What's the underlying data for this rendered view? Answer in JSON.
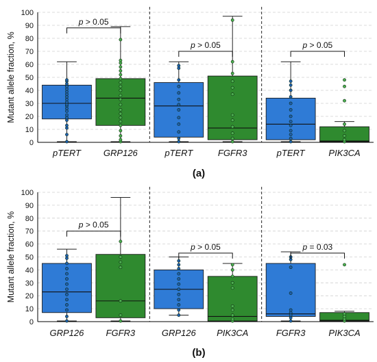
{
  "chart_data": [
    {
      "panel_label": "(a)",
      "type": "box",
      "ylabel": "Mutant allele fraction, %",
      "ylim": [
        0,
        100
      ],
      "yticks": [
        0,
        10,
        20,
        30,
        40,
        50,
        60,
        70,
        80,
        90,
        100
      ],
      "grid": "horizontal-dashed",
      "groups": [
        {
          "boxes": [
            {
              "label": "pTERT",
              "color": "#2f7bd6",
              "whisker_low": 0.5,
              "q1": 18,
              "median": 30,
              "q3": 44,
              "whisker_high": 62,
              "points": [
                0.5,
                6,
                11,
                13,
                17,
                19,
                21,
                24,
                26,
                28,
                29,
                31,
                33,
                35,
                37,
                39,
                41,
                43,
                45,
                47,
                48
              ]
            },
            {
              "label": "GRP126",
              "color": "#2f8a2f",
              "whisker_low": 0.5,
              "q1": 13,
              "median": 34,
              "q3": 49,
              "whisker_high": 89,
              "points": [
                0.5,
                2,
                5,
                9,
                13,
                16,
                19,
                22,
                25,
                29,
                33,
                36,
                40,
                43,
                46,
                49,
                52,
                55,
                58,
                61,
                63,
                79
              ]
            }
          ],
          "comparison": {
            "symbol": "p",
            "op": ">",
            "value": "0.05",
            "bracket_y": 88
          }
        },
        {
          "boxes": [
            {
              "label": "pTERT",
              "color": "#2f7bd6",
              "whisker_low": 0.5,
              "q1": 4,
              "median": 28,
              "q3": 46,
              "whisker_high": 62,
              "points": [
                0.5,
                3,
                8,
                14,
                19,
                25,
                29,
                33,
                38,
                43,
                48,
                57,
                59
              ]
            },
            {
              "label": "FGFR3",
              "color": "#2f8a2f",
              "whisker_low": 0.5,
              "q1": 2,
              "median": 11,
              "q3": 51,
              "whisker_high": 97,
              "points": [
                0.5,
                3,
                7,
                12,
                17,
                21,
                37,
                42,
                47,
                53,
                62,
                94
              ]
            }
          ],
          "comparison": {
            "symbol": "p",
            "op": ">",
            "value": "0.05",
            "bracket_y": 70
          }
        },
        {
          "boxes": [
            {
              "label": "pTERT",
              "color": "#2f7bd6",
              "whisker_low": 0.5,
              "q1": 2,
              "median": 14,
              "q3": 34,
              "whisker_high": 62,
              "points": [
                0.5,
                3,
                6,
                9,
                13,
                16,
                20,
                25,
                30,
                35,
                40,
                44,
                47
              ]
            },
            {
              "label": "PIK3CA",
              "color": "#2f8a2f",
              "whisker_low": 0.5,
              "q1": 0.5,
              "median": 1,
              "q3": 12,
              "whisker_high": 16,
              "points": [
                0.5,
                2,
                5,
                9,
                14,
                32,
                43,
                48
              ]
            }
          ],
          "comparison": {
            "symbol": "p",
            "op": ">",
            "value": "0.05",
            "bracket_y": 70
          }
        }
      ]
    },
    {
      "panel_label": "(b)",
      "type": "box",
      "ylabel": "Mutant allele fraction, %",
      "ylim": [
        0,
        100
      ],
      "yticks": [
        0,
        10,
        20,
        30,
        40,
        50,
        60,
        70,
        80,
        90,
        100
      ],
      "grid": "horizontal-dashed",
      "groups": [
        {
          "boxes": [
            {
              "label": "GRP126",
              "color": "#2f7bd6",
              "whisker_low": 0.5,
              "q1": 7,
              "median": 23,
              "q3": 45,
              "whisker_high": 56,
              "points": [
                0.5,
                4,
                9,
                13,
                17,
                21,
                25,
                29,
                33,
                37,
                41,
                45,
                49,
                51
              ]
            },
            {
              "label": "FGFR3",
              "color": "#2f8a2f",
              "whisker_low": 0.5,
              "q1": 3,
              "median": 16,
              "q3": 52,
              "whisker_high": 96,
              "points": [
                0.5,
                5,
                16,
                42,
                46,
                50,
                62
              ]
            }
          ],
          "comparison": {
            "symbol": "p",
            "op": ">",
            "value": "0.05",
            "bracket_y": 70
          }
        },
        {
          "boxes": [
            {
              "label": "GRP126",
              "color": "#2f7bd6",
              "whisker_low": 5,
              "q1": 10,
              "median": 25,
              "q3": 40,
              "whisker_high": 50,
              "points": [
                5,
                9,
                13,
                17,
                21,
                25,
                29,
                33,
                37,
                41,
                44,
                47
              ]
            },
            {
              "label": "PIK3CA",
              "color": "#2f8a2f",
              "whisker_low": 0.5,
              "q1": 0.5,
              "median": 4,
              "q3": 35,
              "whisker_high": 45,
              "points": [
                0.5,
                2,
                5,
                9,
                12,
                26,
                30,
                35,
                40,
                44
              ]
            }
          ],
          "comparison": {
            "symbol": "p",
            "op": ">",
            "value": "0.05",
            "bracket_y": 53
          }
        },
        {
          "boxes": [
            {
              "label": "FGFR3",
              "color": "#2f7bd6",
              "whisker_low": 0.5,
              "q1": 4,
              "median": 6,
              "q3": 45,
              "whisker_high": 54,
              "points": [
                0.5,
                3,
                5,
                7,
                9,
                22,
                42,
                48,
                50
              ]
            },
            {
              "label": "PIK3CA",
              "color": "#2f8a2f",
              "whisker_low": 0.5,
              "q1": 0.5,
              "median": 1,
              "q3": 7,
              "whisker_high": 8,
              "points": [
                0.5,
                2,
                4,
                6,
                44
              ]
            }
          ],
          "comparison": {
            "symbol": "p",
            "op": "=",
            "value": "0.03",
            "bracket_y": 53
          }
        }
      ]
    }
  ]
}
